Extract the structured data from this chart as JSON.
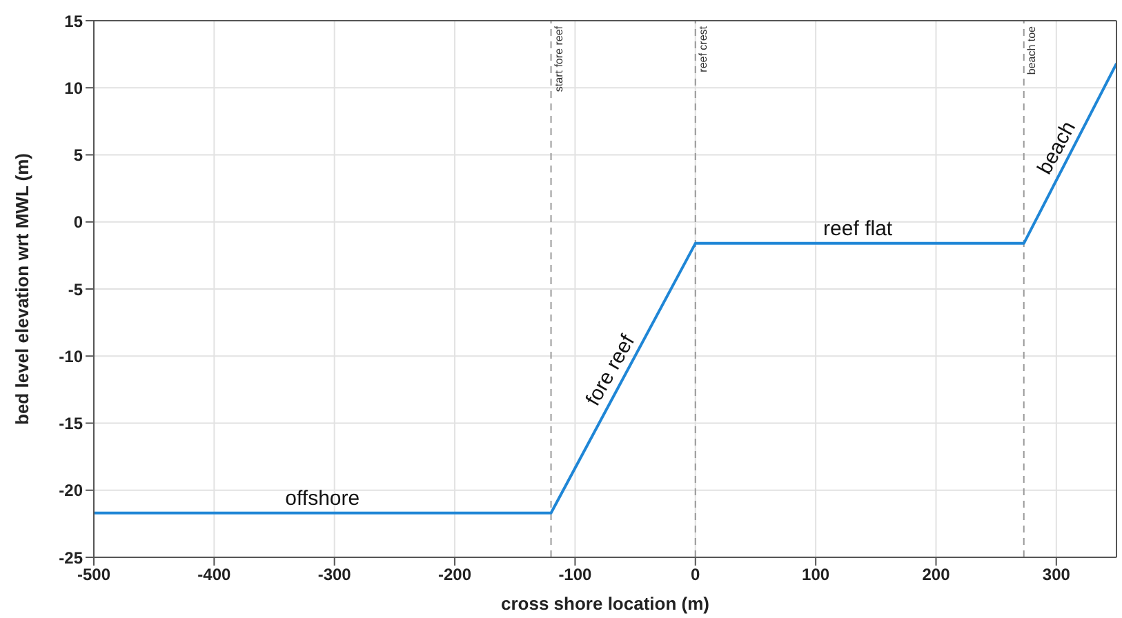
{
  "chart_data": {
    "type": "line",
    "xlabel": "cross shore location (m)",
    "ylabel": "bed level elevation wrt MWL (m)",
    "x": [
      -500,
      -120,
      0,
      273,
      350
    ],
    "series": [
      {
        "color": "#1f86d6",
        "values": [
          -21.7,
          -21.7,
          -1.6,
          -1.6,
          11.8
        ]
      }
    ],
    "xlim": [
      -500,
      350
    ],
    "xticks": [
      -500,
      -400,
      -300,
      -200,
      -100,
      0,
      100,
      200,
      300
    ],
    "ylim": [
      -25,
      15
    ],
    "yticks": [
      -25,
      -20,
      -15,
      -10,
      -5,
      0,
      5,
      10,
      15
    ],
    "grid": true,
    "marker": "none",
    "line_style": "solid",
    "ref_lines": [
      {
        "axis": "x",
        "value": -120,
        "label": "start fore reef",
        "color": "#999999",
        "line_style": "dashed"
      },
      {
        "axis": "x",
        "value": 0,
        "label": "reef crest",
        "color": "#999999",
        "line_style": "dashed"
      },
      {
        "axis": "x",
        "value": 273,
        "label": "beach toe",
        "color": "#999999",
        "line_style": "dashed"
      }
    ],
    "annotations": [
      {
        "text": "offshore",
        "x": -310,
        "y": -21.7
      },
      {
        "text": "fore reef",
        "x": -60,
        "y": -11.6
      },
      {
        "text": "reef flat",
        "x": 135,
        "y": -1.6
      },
      {
        "text": "beach",
        "x": 311,
        "y": 5
      }
    ]
  }
}
